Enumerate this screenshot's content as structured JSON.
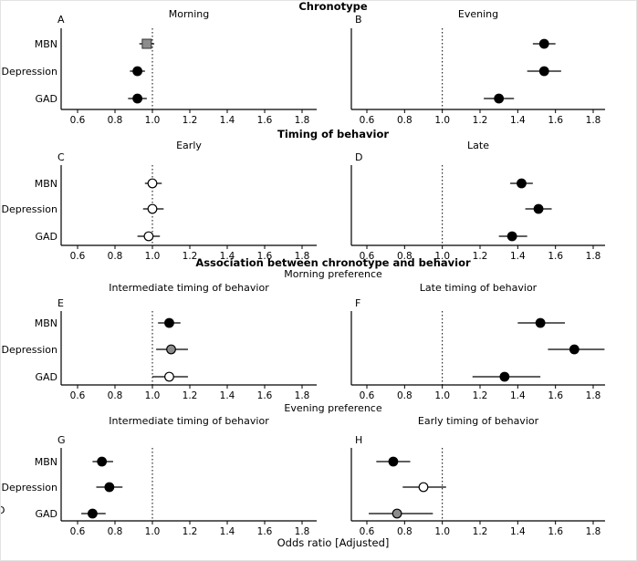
{
  "stray_character": "D",
  "chart_data": {
    "type": "forest",
    "xlabel": "Odds ratio [Adjusted]",
    "x_ticks": [
      "0.6",
      "0.8",
      "1.0",
      "1.2",
      "1.4",
      "1.6",
      "1.8"
    ],
    "x_range": [
      0.5,
      1.9
    ],
    "reference_line": 1.0,
    "outcomes": [
      "MBN",
      "Depression",
      "GAD"
    ],
    "colors": {
      "black": "#000000",
      "gray": "#8c8c8c",
      "open": "#ffffff",
      "axis": "#000000"
    },
    "rows": [
      {
        "header": "Chronotype",
        "panels": [
          {
            "letter": "A",
            "title": "Morning",
            "points": [
              {
                "outcome": "MBN",
                "or": 0.97,
                "ci": [
                  0.93,
                  1.01
                ],
                "marker": "square-gray"
              },
              {
                "outcome": "Depression",
                "or": 0.92,
                "ci": [
                  0.88,
                  0.96
                ],
                "marker": "circle-black"
              },
              {
                "outcome": "GAD",
                "or": 0.92,
                "ci": [
                  0.87,
                  0.97
                ],
                "marker": "circle-black"
              }
            ]
          },
          {
            "letter": "B",
            "title": "Evening",
            "points": [
              {
                "outcome": "MBN",
                "or": 1.54,
                "ci": [
                  1.48,
                  1.6
                ],
                "marker": "circle-black"
              },
              {
                "outcome": "Depression",
                "or": 1.54,
                "ci": [
                  1.45,
                  1.63
                ],
                "marker": "circle-black"
              },
              {
                "outcome": "GAD",
                "or": 1.3,
                "ci": [
                  1.22,
                  1.38
                ],
                "marker": "circle-black"
              }
            ]
          }
        ]
      },
      {
        "header": "Timing of behavior",
        "panels": [
          {
            "letter": "C",
            "title": "Early",
            "points": [
              {
                "outcome": "MBN",
                "or": 1.0,
                "ci": [
                  0.96,
                  1.05
                ],
                "marker": "circle-open"
              },
              {
                "outcome": "Depression",
                "or": 1.0,
                "ci": [
                  0.95,
                  1.06
                ],
                "marker": "circle-open"
              },
              {
                "outcome": "GAD",
                "or": 0.98,
                "ci": [
                  0.92,
                  1.04
                ],
                "marker": "circle-open"
              }
            ]
          },
          {
            "letter": "D",
            "title": "Late",
            "points": [
              {
                "outcome": "MBN",
                "or": 1.42,
                "ci": [
                  1.36,
                  1.48
                ],
                "marker": "circle-black"
              },
              {
                "outcome": "Depression",
                "or": 1.51,
                "ci": [
                  1.44,
                  1.58
                ],
                "marker": "circle-black"
              },
              {
                "outcome": "GAD",
                "or": 1.37,
                "ci": [
                  1.3,
                  1.45
                ],
                "marker": "circle-black"
              }
            ]
          }
        ]
      },
      {
        "header": "Association between chronotype and behavior",
        "subheader": "Morning preference",
        "panels": [
          {
            "letter": "E",
            "title": "Intermediate timing of behavior",
            "points": [
              {
                "outcome": "MBN",
                "or": 1.09,
                "ci": [
                  1.03,
                  1.15
                ],
                "marker": "circle-black"
              },
              {
                "outcome": "Depression",
                "or": 1.1,
                "ci": [
                  1.02,
                  1.19
                ],
                "marker": "circle-gray"
              },
              {
                "outcome": "GAD",
                "or": 1.09,
                "ci": [
                  1.0,
                  1.19
                ],
                "marker": "circle-open"
              }
            ]
          },
          {
            "letter": "F",
            "title": "Late timing of behavior",
            "points": [
              {
                "outcome": "MBN",
                "or": 1.52,
                "ci": [
                  1.4,
                  1.65
                ],
                "marker": "circle-black"
              },
              {
                "outcome": "Depression",
                "or": 1.7,
                "ci": [
                  1.56,
                  1.86
                ],
                "marker": "circle-black"
              },
              {
                "outcome": "GAD",
                "or": 1.33,
                "ci": [
                  1.16,
                  1.52
                ],
                "marker": "circle-black"
              }
            ]
          }
        ]
      },
      {
        "subheader": "Evening preference",
        "panels": [
          {
            "letter": "G",
            "title": "Intermediate timing of behavior",
            "points": [
              {
                "outcome": "MBN",
                "or": 0.73,
                "ci": [
                  0.68,
                  0.79
                ],
                "marker": "circle-black"
              },
              {
                "outcome": "Depression",
                "or": 0.77,
                "ci": [
                  0.7,
                  0.84
                ],
                "marker": "circle-black"
              },
              {
                "outcome": "GAD",
                "or": 0.68,
                "ci": [
                  0.62,
                  0.75
                ],
                "marker": "circle-black"
              }
            ]
          },
          {
            "letter": "H",
            "title": "Early timing of behavior",
            "points": [
              {
                "outcome": "MBN",
                "or": 0.74,
                "ci": [
                  0.65,
                  0.83
                ],
                "marker": "circle-black"
              },
              {
                "outcome": "Depression",
                "or": 0.9,
                "ci": [
                  0.79,
                  1.02
                ],
                "marker": "circle-open"
              },
              {
                "outcome": "GAD",
                "or": 0.76,
                "ci": [
                  0.61,
                  0.95
                ],
                "marker": "circle-gray"
              }
            ]
          }
        ]
      }
    ]
  }
}
